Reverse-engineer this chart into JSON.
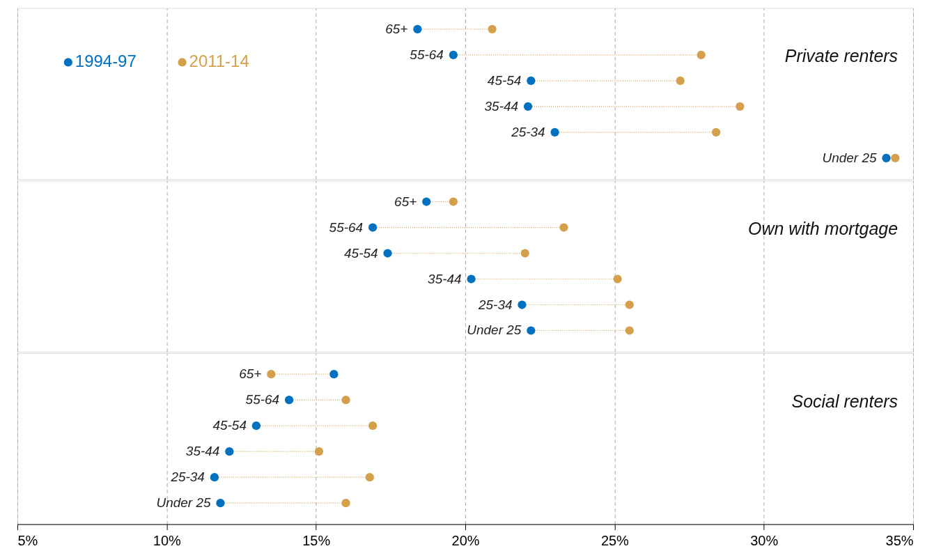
{
  "chart_data": [
    {
      "type": "scatter",
      "orientation": "horizontal",
      "title": "Private renters",
      "categories": [
        "65+",
        "55-64",
        "45-54",
        "35-44",
        "25-34",
        "Under 25"
      ],
      "series": [
        {
          "name": "1994-97",
          "color": "#0070c0",
          "values": [
            18.4,
            19.6,
            22.2,
            22.1,
            23.0,
            34.1
          ]
        },
        {
          "name": "2011-14",
          "color": "#d4a04c",
          "values": [
            20.9,
            27.9,
            27.2,
            29.2,
            28.4,
            34.4
          ]
        }
      ],
      "xlim": [
        5,
        35
      ],
      "xticks": [
        {
          "value": 5,
          "label": null
        },
        {
          "value": 10,
          "label": null
        },
        {
          "value": 15,
          "label": null
        },
        {
          "value": 20,
          "label": null
        },
        {
          "value": 25,
          "label": null
        },
        {
          "value": 30,
          "label": null
        },
        {
          "value": 35,
          "label": null
        }
      ],
      "grid": "x",
      "legend": "top left",
      "marker": "circle",
      "tick_labels": false
    },
    {
      "type": "scatter",
      "orientation": "horizontal",
      "title": "Own with mortgage",
      "categories": [
        "65+",
        "55-64",
        "45-54",
        "35-44",
        "25-34",
        "Under 25"
      ],
      "series": [
        {
          "color": "#0070c0",
          "values": [
            18.7,
            16.9,
            17.4,
            20.2,
            21.9,
            22.2
          ]
        },
        {
          "color": "#d4a04c",
          "values": [
            19.6,
            23.3,
            22.0,
            25.1,
            25.5,
            25.5
          ]
        }
      ],
      "xlim": [
        5,
        35
      ],
      "xticks": [
        {
          "value": 5,
          "label": null
        },
        {
          "value": 10,
          "label": null
        },
        {
          "value": 15,
          "label": null
        },
        {
          "value": 20,
          "label": null
        },
        {
          "value": 25,
          "label": null
        },
        {
          "value": 30,
          "label": null
        },
        {
          "value": 35,
          "label": null
        }
      ],
      "grid": "x",
      "marker": "circle",
      "tick_labels": false
    },
    {
      "type": "scatter",
      "orientation": "horizontal",
      "title": "Social renters",
      "categories": [
        "65+",
        "55-64",
        "45-54",
        "35-44",
        "25-34",
        "Under 25"
      ],
      "series": [
        {
          "color": "#0070c0",
          "values": [
            15.6,
            14.1,
            13.0,
            12.1,
            11.6,
            11.8
          ]
        },
        {
          "color": "#d4a04c",
          "values": [
            13.5,
            16.0,
            16.9,
            15.1,
            16.8,
            16.0
          ]
        }
      ],
      "xlim": [
        5,
        35
      ],
      "xticks": [
        {
          "value": 5,
          "label": "5%"
        },
        {
          "value": 10,
          "label": "10%"
        },
        {
          "value": 15,
          "label": "15%"
        },
        {
          "value": 20,
          "label": "20%"
        },
        {
          "value": 25,
          "label": "25%"
        },
        {
          "value": 30,
          "label": "30%"
        },
        {
          "value": 35,
          "label": "35%"
        }
      ],
      "grid": "x",
      "marker": "circle"
    }
  ]
}
